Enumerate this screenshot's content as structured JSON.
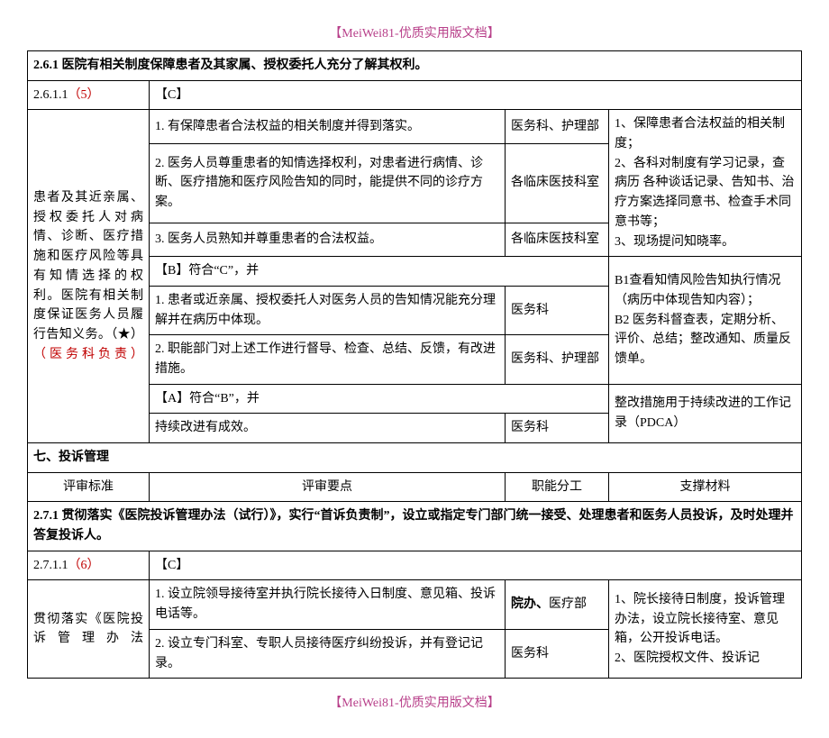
{
  "header": "【MeiWei81-优质实用版文档】",
  "footer": "【MeiWei81-优质实用版文档】",
  "section261_title_prefix": "2.6.1",
  "section261_title": " 医院有相关制度保障患者及其家属、授权委托人充分了解其权利。",
  "row_2611_prefix": "2.6.1.1",
  "row_2611_red": "（5）",
  "c_label": "【C】",
  "b_label": "【B】符合“C”，并",
  "a_label": "【A】符合“B”，并",
  "left_block_a": "患者及其近亲属、授权委托人对病情、诊断、医疗措施和医疗风险等具有知情选择的权利。医院有相关制度保证医务人员履行告知义务。（★）",
  "left_block_red": "（医务科负责）",
  "c1": "1. 有保障患者合法权益的相关制度并得到落实。",
  "c1_dept": "医务科、护理部",
  "c2": "2. 医务人员尊重患者的知情选择权利，对患者进行病情、诊断、医疗措施和医疗风险告知的同时，能提供不同的诊疗方案。",
  "c2_dept": "各临床医技科室",
  "c3": "3. 医务人员熟知并尊重患者的合法权益。",
  "c3_dept": "各临床医技科室",
  "b1": "1. 患者或近亲属、授权委托人对医务人员的告知情况能充分理解并在病历中体现。",
  "b1_dept": "医务科",
  "b2": "2. 职能部门对上述工作进行督导、检查、总结、反馈，有改进措施。",
  "b2_dept": "医务科、护理部",
  "a1": "持续改进有成效。",
  "a1_dept": "医务科",
  "support_c_block": "1、保障患者合法权益的相关制度；\n2、各科对制度有学习记录，查病历 各种谈话记录、告知书、治疗方案选择同意书、检查手术同意书等；\n3、现场提问知晓率。",
  "support_b_block": "B1查看知情风险告知执行情况（病历中体现告知内容）；\nB2 医务科督查表，定期分析、评价、总结；整改通知、质量反馈单。",
  "support_a_block": "整改措施用于持续改进的工作记录（PDCA）",
  "section7_title": "七、投诉管理",
  "col_head_1": "评审标准",
  "col_head_2": "评审要点",
  "col_head_3": "职能分工",
  "col_head_4": "支撑材料",
  "section271_title_prefix": "2.7.1",
  "section271_title": " 贯彻落实《医院投诉管理办法（试行）》，实行“首诉负责制”，设立或指定专门部门统一接受、处理患者和医务人员投诉，及时处理并答复投诉人。",
  "row_2711_prefix": "2.7.1.1",
  "row_2711_red": "（6）",
  "left_block_271": "贯彻落实《医院投诉管理办法",
  "d1": "1. 设立院领导接待室并执行院长接待入日制度、意见箱、投诉电话等。",
  "d1_dept_bold": "院办、",
  "d1_dept_rest": "医疗部",
  "d2": "2. 设立专门科室、专职人员接待医疗纠纷投诉，并有登记记录。",
  "d2_dept": "医务科",
  "support_271": "1、院长接待日制度，投诉管理办法，设立院长接待室、意见箱，公开投诉电话。\n2、医院授权文件、投诉记"
}
